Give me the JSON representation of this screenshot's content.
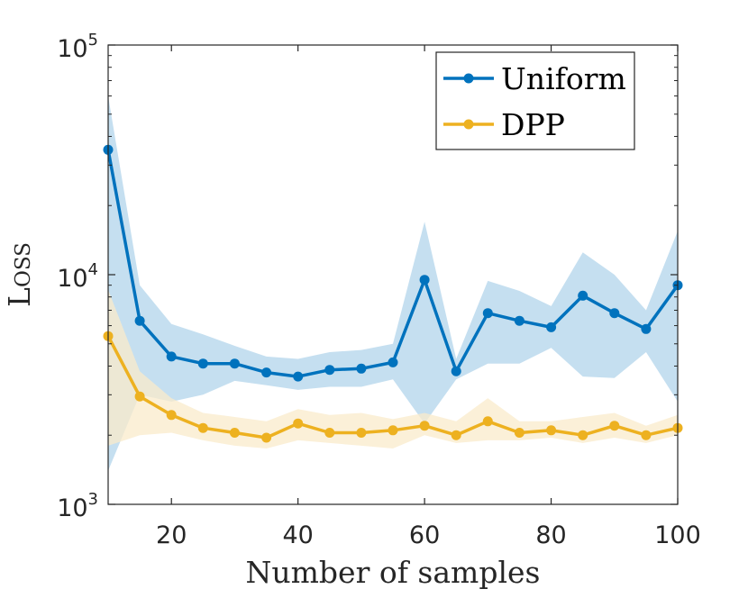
{
  "chart_data": {
    "type": "line",
    "title": "",
    "xlabel": "Number of samples",
    "ylabel": "Loss",
    "yscale": "log",
    "xlim": [
      10,
      100
    ],
    "ylim": [
      1000,
      100000
    ],
    "xticks": [
      20,
      40,
      60,
      80,
      100
    ],
    "xtick_labels": [
      "20",
      "40",
      "60",
      "80",
      "100"
    ],
    "yticks": [
      1000,
      10000,
      100000
    ],
    "ytick_base": "10",
    "ytick_exponents": [
      "3",
      "4",
      "5"
    ],
    "legend_position": "top-right",
    "grid": false,
    "x": [
      10,
      15,
      20,
      25,
      30,
      35,
      40,
      45,
      50,
      55,
      60,
      65,
      70,
      75,
      80,
      85,
      90,
      95,
      100
    ],
    "series": [
      {
        "name": "Uniform",
        "color": "#0072bd",
        "band_color": "#c5dff0",
        "values": [
          35000,
          6300,
          4400,
          4100,
          4100,
          3750,
          3600,
          3850,
          3900,
          4150,
          9500,
          3800,
          6800,
          6300,
          5900,
          8100,
          6800,
          5800,
          9000
        ],
        "upper": [
          60000,
          9000,
          6100,
          5500,
          4900,
          4400,
          4300,
          4600,
          4700,
          5000,
          17000,
          4300,
          9400,
          8500,
          7300,
          12500,
          10000,
          7000,
          15500
        ],
        "lower": [
          1400,
          3000,
          2800,
          3000,
          3450,
          3300,
          3150,
          3250,
          3250,
          3500,
          2250,
          3500,
          4100,
          4100,
          4800,
          3600,
          3550,
          4600,
          2800
        ]
      },
      {
        "name": "DPP",
        "color": "#edb120",
        "band_color": "#faebcb",
        "values": [
          5400,
          2950,
          2450,
          2150,
          2050,
          1950,
          2250,
          2050,
          2050,
          2100,
          2200,
          2000,
          2300,
          2050,
          2100,
          2000,
          2200,
          2000,
          2150
        ],
        "upper": [
          8600,
          3800,
          2900,
          2500,
          2400,
          2300,
          2600,
          2450,
          2500,
          2350,
          2500,
          2300,
          2900,
          2300,
          2300,
          2400,
          2500,
          2200,
          2450
        ],
        "lower": [
          1800,
          2000,
          2050,
          1900,
          1800,
          1750,
          1900,
          1850,
          1800,
          1750,
          2000,
          1850,
          1900,
          1900,
          1950,
          1850,
          1950,
          1850,
          2000
        ]
      }
    ]
  }
}
